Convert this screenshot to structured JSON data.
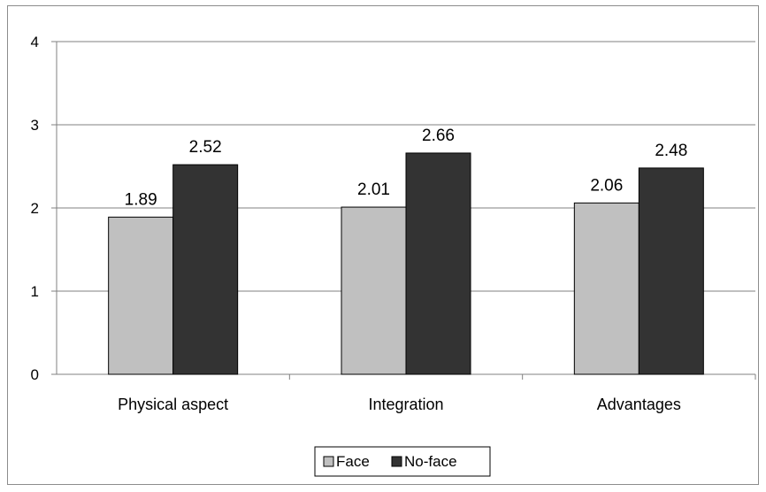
{
  "chart_data": {
    "type": "bar",
    "categories": [
      "Physical aspect",
      "Integration",
      "Advantages"
    ],
    "series": [
      {
        "name": "Face",
        "values": [
          1.89,
          2.01,
          2.06
        ],
        "labels": [
          "1.89",
          "2.01",
          "2.06"
        ],
        "color": "#c0c0c0"
      },
      {
        "name": "No-face",
        "values": [
          2.52,
          2.66,
          2.48
        ],
        "labels": [
          "2.52",
          "2.66",
          "2.48"
        ],
        "color": "#333333"
      }
    ],
    "y_ticks": [
      "0",
      "1",
      "2",
      "3",
      "4"
    ],
    "ylim": [
      0,
      4
    ],
    "grid": true,
    "legend_position": "bottom",
    "title": "",
    "xlabel": "",
    "ylabel": ""
  }
}
